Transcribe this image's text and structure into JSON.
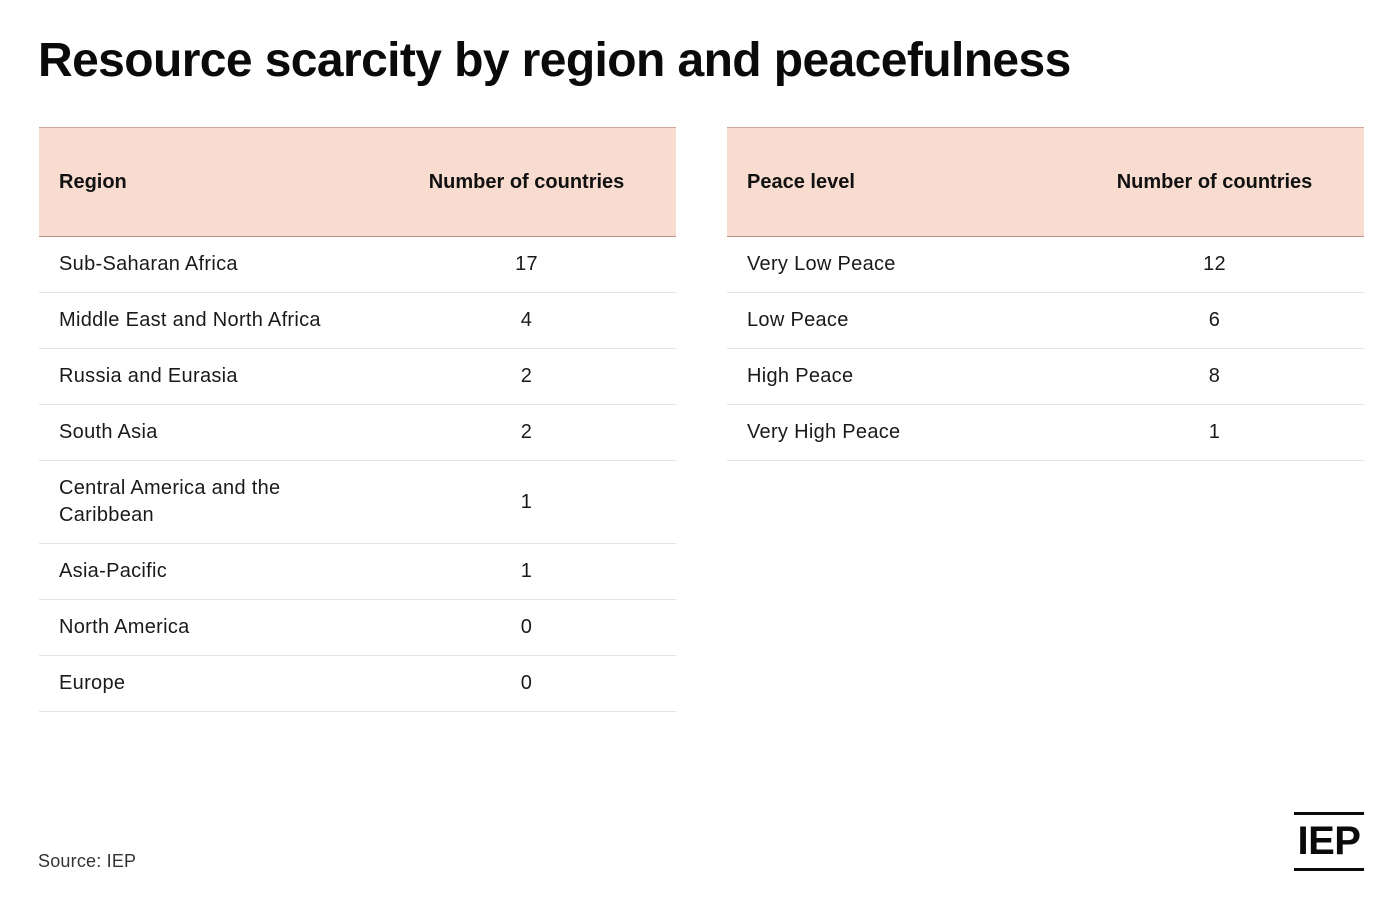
{
  "title": "Resource scarcity by region and peacefulness",
  "source": "Source: IEP",
  "logo_text": "IEP",
  "colors": {
    "header_background": "#f8dcd0",
    "text": "#111111",
    "row_divider": "#e4e4e4"
  },
  "chart_data": [
    {
      "type": "table",
      "columns": [
        "Region",
        "Number of countries"
      ],
      "rows": [
        [
          "Sub-Saharan Africa",
          "17"
        ],
        [
          "Middle East and North Africa",
          "4"
        ],
        [
          "Russia and Eurasia",
          "2"
        ],
        [
          "South Asia",
          "2"
        ],
        [
          "Central America and the Caribbean",
          "1"
        ],
        [
          "Asia-Pacific",
          "1"
        ],
        [
          "North America",
          "0"
        ],
        [
          "Europe",
          "0"
        ]
      ]
    },
    {
      "type": "table",
      "columns": [
        "Peace level",
        "Number of countries"
      ],
      "rows": [
        [
          "Very Low Peace",
          "12"
        ],
        [
          "Low Peace",
          "6"
        ],
        [
          "High Peace",
          "8"
        ],
        [
          "Very High Peace",
          "1"
        ]
      ]
    }
  ]
}
